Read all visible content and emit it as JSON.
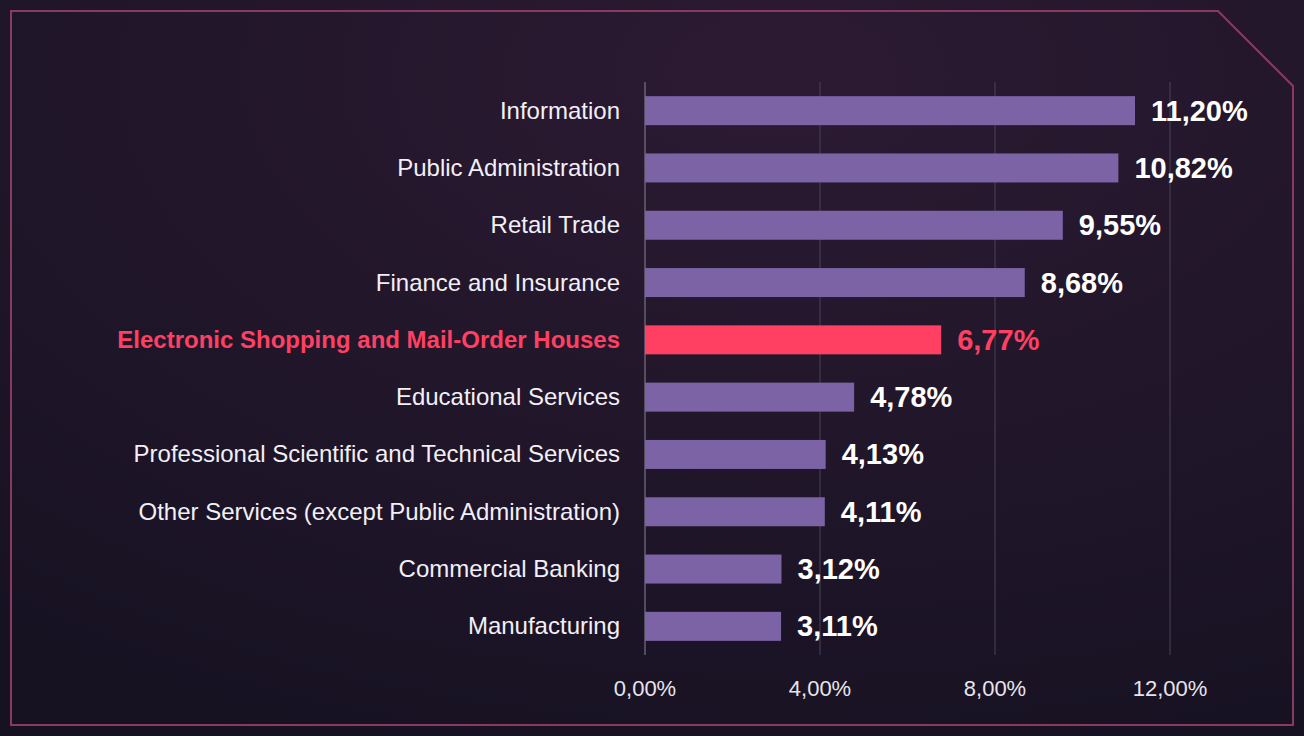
{
  "chart_data": {
    "type": "bar",
    "orientation": "horizontal",
    "categories": [
      "Information",
      "Public Administration",
      "Retail Trade",
      "Finance and Insurance",
      "Electronic Shopping and Mail-Order Houses",
      "Educational Services",
      "Professional Scientific and Technical Services",
      "Other Services (except Public Administration)",
      "Commercial Banking",
      "Manufacturing"
    ],
    "values": [
      11.2,
      10.82,
      9.55,
      8.68,
      6.77,
      4.78,
      4.13,
      4.11,
      3.12,
      3.11
    ],
    "value_labels": [
      "11,20%",
      "10,82%",
      "9,55%",
      "8,68%",
      "6,77%",
      "4,78%",
      "4,13%",
      "4,11%",
      "3,12%",
      "3,11%"
    ],
    "color": "#7b63a6",
    "colors": [
      "#7b63a6",
      "#7b63a6",
      "#7b63a6",
      "#7b63a6",
      "#ff4062",
      "#7b63a6",
      "#7b63a6",
      "#7b63a6",
      "#7b63a6",
      "#7b63a6"
    ],
    "xlim": [
      0,
      12
    ],
    "xticks": [
      {
        "value": 0,
        "label": "0,00%"
      },
      {
        "value": 4,
        "label": "4,00%"
      },
      {
        "value": 8,
        "label": "8,00%"
      },
      {
        "value": 12,
        "label": "12,00%"
      }
    ],
    "grid": true,
    "data_labels": true
  }
}
